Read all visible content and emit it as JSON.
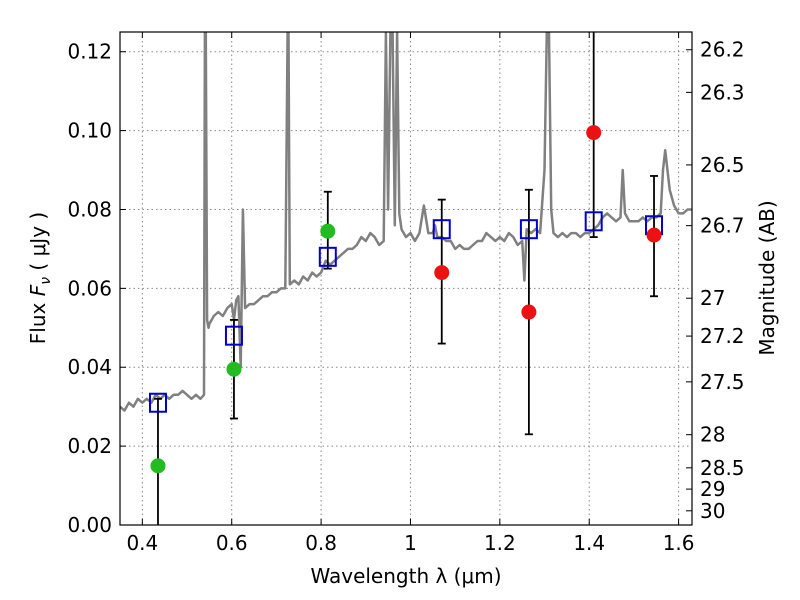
{
  "chart_data": {
    "type": "scatter",
    "xlabel": "Wavelength  λ (μm)",
    "ylabel": "Flux  F_ν  ( μJy )",
    "ylabel_parts": {
      "prefix": "Flux  ",
      "symbol": "F",
      "subscript": "ν",
      "suffix": "  ( μJy )"
    },
    "y2label": "Magnitude (AB)",
    "xlim": [
      0.35,
      1.63
    ],
    "ylim": [
      0.0,
      0.125
    ],
    "grid": true,
    "x_ticks": [
      0.4,
      0.6,
      0.8,
      1.0,
      1.2,
      1.4,
      1.6
    ],
    "x_tick_labels": [
      "0.4",
      "0.6",
      "0.8",
      "1",
      "1.2",
      "1.4",
      "1.6"
    ],
    "y_ticks": [
      0.0,
      0.02,
      0.04,
      0.06,
      0.08,
      0.1,
      0.12
    ],
    "y_tick_labels": [
      "0.00",
      "0.02",
      "0.04",
      "0.06",
      "0.08",
      "0.10",
      "0.12"
    ],
    "y2_ticks": [
      {
        "label": "26.2",
        "flux": 0.1205
      },
      {
        "label": "26.3",
        "flux": 0.1097
      },
      {
        "label": "26.5",
        "flux": 0.0913
      },
      {
        "label": "26.7",
        "flux": 0.0759
      },
      {
        "label": "27",
        "flux": 0.0575
      },
      {
        "label": "27.2",
        "flux": 0.0479
      },
      {
        "label": "27.5",
        "flux": 0.0363
      },
      {
        "label": "28",
        "flux": 0.0229
      },
      {
        "label": "28.5",
        "flux": 0.0145
      },
      {
        "label": "29",
        "flux": 0.0091
      },
      {
        "label": "30",
        "flux": 0.0036
      }
    ],
    "colors": {
      "spectrum": "#808080",
      "model": "#0000cc",
      "green": "#22bb22",
      "red": "#ee1111",
      "errorbar": "#000000"
    },
    "spectrum": {
      "x": [
        0.35,
        0.36,
        0.37,
        0.38,
        0.39,
        0.4,
        0.41,
        0.42,
        0.43,
        0.44,
        0.45,
        0.46,
        0.47,
        0.48,
        0.49,
        0.5,
        0.51,
        0.52,
        0.53,
        0.538,
        0.54,
        0.542,
        0.545,
        0.548,
        0.55,
        0.56,
        0.57,
        0.58,
        0.59,
        0.6,
        0.605,
        0.61,
        0.615,
        0.62,
        0.625,
        0.63,
        0.64,
        0.65,
        0.66,
        0.67,
        0.68,
        0.69,
        0.7,
        0.71,
        0.72,
        0.725,
        0.727,
        0.73,
        0.74,
        0.75,
        0.76,
        0.77,
        0.78,
        0.79,
        0.8,
        0.81,
        0.82,
        0.83,
        0.84,
        0.85,
        0.86,
        0.87,
        0.88,
        0.89,
        0.9,
        0.91,
        0.92,
        0.93,
        0.94,
        0.945,
        0.95,
        0.955,
        0.96,
        0.965,
        0.97,
        0.975,
        0.98,
        0.99,
        1.0,
        1.01,
        1.02,
        1.03,
        1.04,
        1.05,
        1.055,
        1.06,
        1.07,
        1.08,
        1.09,
        1.1,
        1.11,
        1.12,
        1.13,
        1.14,
        1.15,
        1.16,
        1.17,
        1.18,
        1.19,
        1.2,
        1.21,
        1.22,
        1.23,
        1.24,
        1.25,
        1.255,
        1.26,
        1.27,
        1.28,
        1.29,
        1.3,
        1.305,
        1.31,
        1.315,
        1.32,
        1.33,
        1.34,
        1.35,
        1.36,
        1.37,
        1.38,
        1.39,
        1.4,
        1.41,
        1.42,
        1.43,
        1.44,
        1.45,
        1.46,
        1.47,
        1.475,
        1.48,
        1.49,
        1.5,
        1.51,
        1.52,
        1.53,
        1.54,
        1.55,
        1.56,
        1.565,
        1.57,
        1.58,
        1.59,
        1.6,
        1.61,
        1.62,
        1.63
      ],
      "y": [
        0.03,
        0.029,
        0.031,
        0.03,
        0.032,
        0.031,
        0.032,
        0.031,
        0.033,
        0.032,
        0.033,
        0.032,
        0.033,
        0.033,
        0.034,
        0.033,
        0.032,
        0.033,
        0.032,
        0.033,
        0.125,
        0.125,
        0.052,
        0.05,
        0.051,
        0.053,
        0.054,
        0.053,
        0.055,
        0.056,
        0.052,
        0.057,
        0.058,
        0.04,
        0.08,
        0.055,
        0.056,
        0.056,
        0.057,
        0.058,
        0.058,
        0.059,
        0.059,
        0.06,
        0.06,
        0.125,
        0.125,
        0.061,
        0.062,
        0.061,
        0.063,
        0.062,
        0.064,
        0.063,
        0.064,
        0.067,
        0.066,
        0.067,
        0.068,
        0.069,
        0.07,
        0.07,
        0.071,
        0.073,
        0.072,
        0.074,
        0.073,
        0.071,
        0.072,
        0.125,
        0.08,
        0.125,
        0.125,
        0.076,
        0.125,
        0.079,
        0.075,
        0.073,
        0.074,
        0.072,
        0.074,
        0.081,
        0.074,
        0.074,
        0.076,
        0.073,
        0.073,
        0.072,
        0.072,
        0.07,
        0.071,
        0.07,
        0.07,
        0.071,
        0.072,
        0.072,
        0.074,
        0.073,
        0.072,
        0.073,
        0.072,
        0.074,
        0.073,
        0.071,
        0.072,
        0.062,
        0.075,
        0.074,
        0.075,
        0.074,
        0.09,
        0.125,
        0.125,
        0.08,
        0.074,
        0.073,
        0.074,
        0.073,
        0.074,
        0.074,
        0.073,
        0.074,
        0.074,
        0.075,
        0.076,
        0.078,
        0.079,
        0.078,
        0.077,
        0.078,
        0.09,
        0.079,
        0.077,
        0.077,
        0.077,
        0.078,
        0.077,
        0.078,
        0.078,
        0.079,
        0.09,
        0.095,
        0.085,
        0.081,
        0.079,
        0.079,
        0.08,
        0.08
      ]
    },
    "series": [
      {
        "marker": "open-square",
        "color": "#0000cc",
        "x": [
          0.435,
          0.605,
          0.815,
          1.07,
          1.265,
          1.41,
          1.545
        ],
        "y": [
          0.031,
          0.048,
          0.068,
          0.075,
          0.075,
          0.077,
          0.076
        ]
      },
      {
        "marker": "circle",
        "color": "#22bb22",
        "x": [
          0.435,
          0.605,
          0.815
        ],
        "y": [
          0.015,
          0.0395,
          0.0745
        ],
        "yerr_low": [
          0.0,
          0.027,
          0.065
        ],
        "yerr_high": [
          0.032,
          0.052,
          0.0845
        ]
      },
      {
        "marker": "circle",
        "color": "#ee1111",
        "x": [
          1.07,
          1.265,
          1.41,
          1.545
        ],
        "y": [
          0.064,
          0.054,
          0.0995,
          0.0735
        ],
        "yerr_low": [
          0.046,
          0.023,
          0.073,
          0.058
        ],
        "yerr_high": [
          0.0825,
          0.085,
          0.125,
          0.0885
        ]
      }
    ]
  }
}
